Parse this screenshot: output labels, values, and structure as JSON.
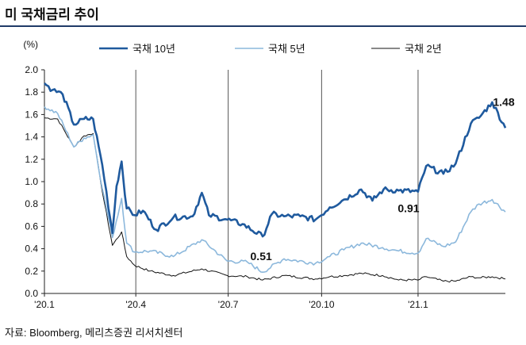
{
  "title": "미 국채금리 추이",
  "source": "자료: Bloomberg, 메리츠증권 리서치센터",
  "chart_data": {
    "type": "line",
    "title": "미 국채금리 추이",
    "ylabel": "(%)",
    "ylim": [
      0.0,
      2.0
    ],
    "yticks": [
      "2.0",
      "1.8",
      "1.6",
      "1.4",
      "1.2",
      "1.0",
      "0.8",
      "0.6",
      "0.4",
      "0.2",
      "0.0"
    ],
    "xlim": [
      "2020-01-02",
      "2021-03-31"
    ],
    "xticks": [
      {
        "date": "2020-01-02",
        "label": "'20.1"
      },
      {
        "date": "2020-04-01",
        "label": "'20.4"
      },
      {
        "date": "2020-07-01",
        "label": "'20.7"
      },
      {
        "date": "2020-10-01",
        "label": "'20.10"
      },
      {
        "date": "2021-01-04",
        "label": "'21.1"
      }
    ],
    "grid": false,
    "legend_position": "top",
    "series": [
      {
        "name": "국채 10년",
        "color": "#1f5a9e",
        "points": [
          [
            "2020-01-02",
            1.88
          ],
          [
            "2020-01-10",
            1.82
          ],
          [
            "2020-01-20",
            1.78
          ],
          [
            "2020-01-31",
            1.51
          ],
          [
            "2020-02-10",
            1.56
          ],
          [
            "2020-02-19",
            1.56
          ],
          [
            "2020-02-28",
            1.15
          ],
          [
            "2020-03-09",
            0.54
          ],
          [
            "2020-03-13",
            0.96
          ],
          [
            "2020-03-18",
            1.18
          ],
          [
            "2020-03-23",
            0.76
          ],
          [
            "2020-03-31",
            0.7
          ],
          [
            "2020-04-08",
            0.74
          ],
          [
            "2020-04-21",
            0.57
          ],
          [
            "2020-05-08",
            0.68
          ],
          [
            "2020-05-27",
            0.69
          ],
          [
            "2020-06-05",
            0.9
          ],
          [
            "2020-06-12",
            0.7
          ],
          [
            "2020-06-30",
            0.66
          ],
          [
            "2020-07-15",
            0.62
          ],
          [
            "2020-08-04",
            0.51
          ],
          [
            "2020-08-13",
            0.71
          ],
          [
            "2020-08-25",
            0.69
          ],
          [
            "2020-09-10",
            0.69
          ],
          [
            "2020-09-25",
            0.66
          ],
          [
            "2020-10-09",
            0.77
          ],
          [
            "2020-10-23",
            0.84
          ],
          [
            "2020-11-09",
            0.93
          ],
          [
            "2020-11-20",
            0.83
          ],
          [
            "2020-12-01",
            0.93
          ],
          [
            "2020-12-16",
            0.92
          ],
          [
            "2021-01-04",
            0.91
          ],
          [
            "2021-01-12",
            1.14
          ],
          [
            "2021-01-29",
            1.07
          ],
          [
            "2021-02-10",
            1.16
          ],
          [
            "2021-02-25",
            1.52
          ],
          [
            "2021-03-05",
            1.57
          ],
          [
            "2021-03-18",
            1.71
          ],
          [
            "2021-03-31",
            1.48
          ]
        ]
      },
      {
        "name": "국채 5년",
        "color": "#8cb8dc",
        "points": [
          [
            "2020-01-02",
            1.67
          ],
          [
            "2020-01-15",
            1.61
          ],
          [
            "2020-01-31",
            1.31
          ],
          [
            "2020-02-10",
            1.39
          ],
          [
            "2020-02-19",
            1.42
          ],
          [
            "2020-02-28",
            0.94
          ],
          [
            "2020-03-09",
            0.5
          ],
          [
            "2020-03-18",
            0.85
          ],
          [
            "2020-03-23",
            0.45
          ],
          [
            "2020-03-31",
            0.37
          ],
          [
            "2020-04-15",
            0.38
          ],
          [
            "2020-05-08",
            0.33
          ],
          [
            "2020-06-05",
            0.48
          ],
          [
            "2020-06-30",
            0.29
          ],
          [
            "2020-07-20",
            0.28
          ],
          [
            "2020-08-04",
            0.19
          ],
          [
            "2020-08-25",
            0.31
          ],
          [
            "2020-09-25",
            0.27
          ],
          [
            "2020-10-09",
            0.33
          ],
          [
            "2020-10-23",
            0.39
          ],
          [
            "2020-11-09",
            0.45
          ],
          [
            "2020-11-30",
            0.41
          ],
          [
            "2020-12-16",
            0.38
          ],
          [
            "2021-01-04",
            0.36
          ],
          [
            "2021-01-12",
            0.49
          ],
          [
            "2021-01-29",
            0.42
          ],
          [
            "2021-02-10",
            0.46
          ],
          [
            "2021-02-25",
            0.73
          ],
          [
            "2021-03-05",
            0.8
          ],
          [
            "2021-03-18",
            0.84
          ],
          [
            "2021-03-31",
            0.73
          ]
        ]
      },
      {
        "name": "국채 2년",
        "color": "#111111",
        "points": [
          [
            "2020-01-02",
            1.57
          ],
          [
            "2020-01-15",
            1.56
          ],
          [
            "2020-01-31",
            1.31
          ],
          [
            "2020-02-10",
            1.41
          ],
          [
            "2020-02-19",
            1.43
          ],
          [
            "2020-02-28",
            0.91
          ],
          [
            "2020-03-09",
            0.43
          ],
          [
            "2020-03-18",
            0.55
          ],
          [
            "2020-03-23",
            0.33
          ],
          [
            "2020-03-31",
            0.25
          ],
          [
            "2020-04-15",
            0.2
          ],
          [
            "2020-05-08",
            0.16
          ],
          [
            "2020-06-05",
            0.22
          ],
          [
            "2020-06-30",
            0.16
          ],
          [
            "2020-07-20",
            0.15
          ],
          [
            "2020-08-04",
            0.12
          ],
          [
            "2020-08-25",
            0.16
          ],
          [
            "2020-09-25",
            0.13
          ],
          [
            "2020-10-09",
            0.15
          ],
          [
            "2020-10-23",
            0.16
          ],
          [
            "2020-11-09",
            0.18
          ],
          [
            "2020-11-30",
            0.16
          ],
          [
            "2020-12-16",
            0.12
          ],
          [
            "2021-01-04",
            0.12
          ],
          [
            "2021-01-12",
            0.15
          ],
          [
            "2021-01-29",
            0.11
          ],
          [
            "2021-02-10",
            0.11
          ],
          [
            "2021-02-25",
            0.15
          ],
          [
            "2021-03-05",
            0.14
          ],
          [
            "2021-03-18",
            0.15
          ],
          [
            "2021-03-31",
            0.13
          ]
        ]
      }
    ],
    "annotations": [
      {
        "text": "1.48",
        "date": "2021-03-31",
        "value": 1.48
      },
      {
        "text": "0.91",
        "date": "2021-01-04",
        "value": 0.91
      },
      {
        "text": "0.51",
        "date": "2020-08-04",
        "value": 0.51
      }
    ]
  }
}
